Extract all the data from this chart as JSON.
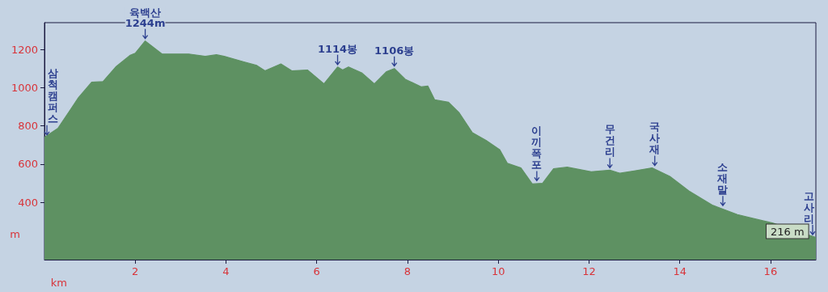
{
  "chart_data": {
    "type": "area",
    "xlabel": "km",
    "ylabel": "m",
    "color": "#5e9162",
    "x": [
      0,
      0.3,
      0.57,
      0.75,
      1.04,
      1.29,
      1.57,
      1.88,
      2.0,
      2.22,
      2.59,
      3.18,
      3.54,
      3.79,
      3.96,
      4.38,
      4.68,
      4.86,
      5.21,
      5.45,
      5.8,
      6.16,
      6.46,
      6.57,
      6.7,
      7.0,
      7.27,
      7.54,
      7.71,
      7.95,
      8.3,
      8.45,
      8.6,
      8.9,
      9.14,
      9.43,
      9.73,
      10.03,
      10.2,
      10.5,
      10.75,
      10.98,
      11.22,
      11.52,
      12.05,
      12.46,
      12.68,
      13.0,
      13.39,
      13.78,
      14.2,
      14.73,
      15.27,
      15.68,
      16.04,
      17.0
    ],
    "values": [
      740,
      788,
      884,
      948,
      1028,
      1032,
      1108,
      1168,
      1180,
      1244,
      1176,
      1176,
      1164,
      1172,
      1164,
      1136,
      1116,
      1088,
      1124,
      1088,
      1092,
      1020,
      1108,
      1092,
      1108,
      1076,
      1020,
      1084,
      1100,
      1044,
      1004,
      1008,
      936,
      924,
      868,
      764,
      724,
      676,
      604,
      580,
      496,
      500,
      576,
      584,
      560,
      568,
      552,
      564,
      580,
      536,
      460,
      384,
      336,
      312,
      292,
      216
    ],
    "xlim": [
      0,
      17
    ],
    "xticks": [
      2,
      4,
      6,
      8,
      10,
      12,
      14,
      16
    ],
    "ylim": [
      100,
      1340
    ],
    "yticks": [
      400,
      600,
      800,
      1000,
      1200
    ],
    "grid": false,
    "annotations": [
      {
        "text": "삼척캠퍼스",
        "x": 0,
        "y": 740
      },
      {
        "text": "육백산 1244m",
        "x": 2.22,
        "y": 1244
      },
      {
        "text": "1114봉",
        "x": 6.46,
        "y": 1108
      },
      {
        "text": "1106봉",
        "x": 7.71,
        "y": 1100
      },
      {
        "text": "이끼폭포",
        "x": 10.85,
        "y": 500
      },
      {
        "text": "무건리",
        "x": 12.46,
        "y": 568
      },
      {
        "text": "국사재",
        "x": 13.45,
        "y": 580
      },
      {
        "text": "소재말",
        "x": 14.95,
        "y": 370
      },
      {
        "text": "고사리",
        "x": 16.95,
        "y": 218
      },
      {
        "text": "216 m",
        "x": 17.0,
        "y": 216
      }
    ]
  }
}
